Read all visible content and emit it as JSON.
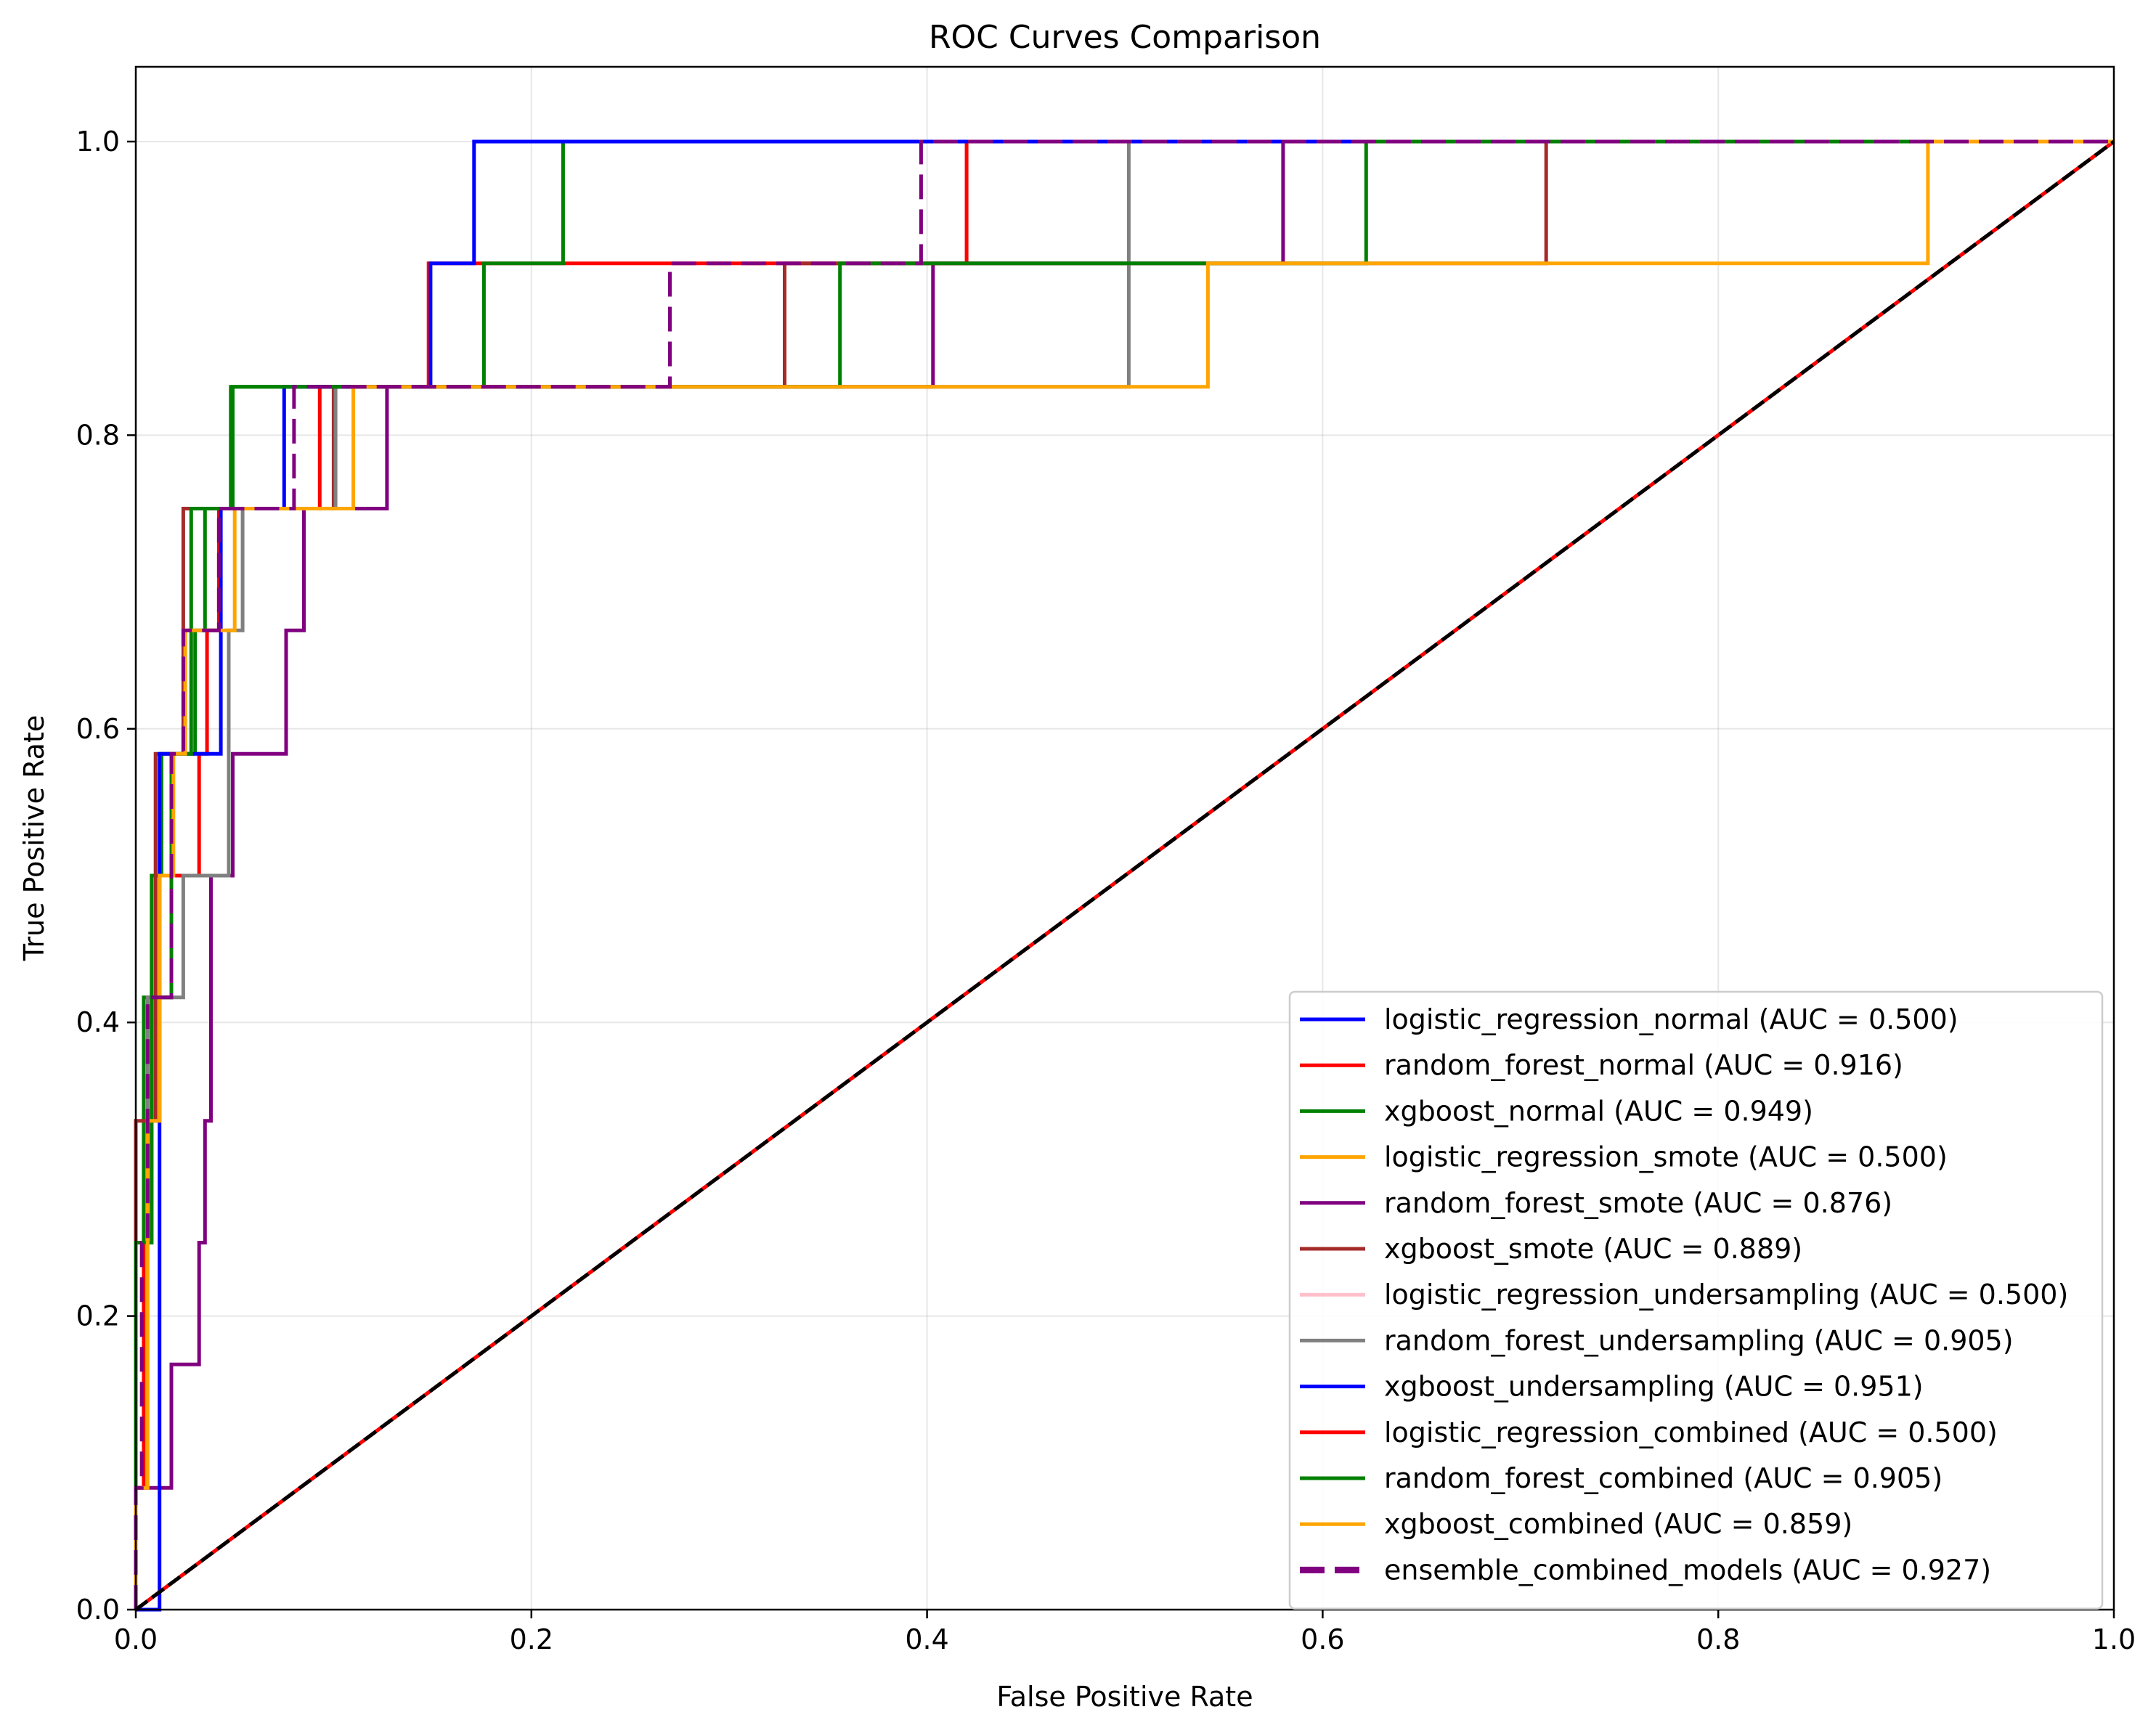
{
  "chart_data": {
    "type": "line",
    "title": "ROC Curves Comparison",
    "xlabel": "False Positive Rate",
    "ylabel": "True Positive Rate",
    "xlim": [
      0.0,
      1.0
    ],
    "ylim": [
      0.0,
      1.05
    ],
    "xticks": [
      "0.0",
      "0.2",
      "0.4",
      "0.6",
      "0.8",
      "1.0"
    ],
    "yticks": [
      "0.0",
      "0.2",
      "0.4",
      "0.6",
      "0.8",
      "1.0"
    ],
    "grid": true,
    "legend_position": "lower-right",
    "series": [
      {
        "name": "logistic_regression_normal (AUC = 0.500)",
        "color": "#0000ff",
        "style": "solid",
        "points": [
          [
            0,
            0
          ],
          [
            1,
            1
          ]
        ]
      },
      {
        "name": "random_forest_normal (AUC = 0.916)",
        "color": "#ff0000",
        "style": "solid",
        "points": [
          [
            0,
            0
          ],
          [
            0,
            0.083
          ],
          [
            0.004,
            0.083
          ],
          [
            0.004,
            0.25
          ],
          [
            0.008,
            0.25
          ],
          [
            0.008,
            0.417
          ],
          [
            0.018,
            0.417
          ],
          [
            0.018,
            0.5
          ],
          [
            0.032,
            0.5
          ],
          [
            0.032,
            0.583
          ],
          [
            0.036,
            0.583
          ],
          [
            0.036,
            0.667
          ],
          [
            0.042,
            0.667
          ],
          [
            0.042,
            0.75
          ],
          [
            0.093,
            0.75
          ],
          [
            0.093,
            0.833
          ],
          [
            0.148,
            0.833
          ],
          [
            0.148,
            0.917
          ],
          [
            0.42,
            0.917
          ],
          [
            0.42,
            1.0
          ],
          [
            1,
            1
          ]
        ]
      },
      {
        "name": "xgboost_normal (AUC = 0.949)",
        "color": "#008000",
        "style": "solid",
        "points": [
          [
            0,
            0
          ],
          [
            0,
            0.25
          ],
          [
            0.004,
            0.25
          ],
          [
            0.004,
            0.417
          ],
          [
            0.008,
            0.417
          ],
          [
            0.008,
            0.5
          ],
          [
            0.013,
            0.5
          ],
          [
            0.013,
            0.583
          ],
          [
            0.03,
            0.583
          ],
          [
            0.03,
            0.667
          ],
          [
            0.035,
            0.667
          ],
          [
            0.035,
            0.75
          ],
          [
            0.049,
            0.75
          ],
          [
            0.049,
            0.833
          ],
          [
            0.176,
            0.833
          ],
          [
            0.176,
            0.917
          ],
          [
            0.216,
            0.917
          ],
          [
            0.216,
            1.0
          ],
          [
            1,
            1
          ]
        ]
      },
      {
        "name": "logistic_regression_smote (AUC = 0.500)",
        "color": "#ffa500",
        "style": "solid",
        "points": [
          [
            0,
            0
          ],
          [
            1,
            1
          ]
        ]
      },
      {
        "name": "random_forest_smote (AUC = 0.876)",
        "color": "#800080",
        "style": "solid",
        "points": [
          [
            0,
            0
          ],
          [
            0,
            0.083
          ],
          [
            0.018,
            0.083
          ],
          [
            0.018,
            0.167
          ],
          [
            0.032,
            0.167
          ],
          [
            0.032,
            0.25
          ],
          [
            0.035,
            0.25
          ],
          [
            0.035,
            0.333
          ],
          [
            0.038,
            0.333
          ],
          [
            0.038,
            0.5
          ],
          [
            0.049,
            0.5
          ],
          [
            0.049,
            0.583
          ],
          [
            0.076,
            0.583
          ],
          [
            0.076,
            0.667
          ],
          [
            0.085,
            0.667
          ],
          [
            0.085,
            0.75
          ],
          [
            0.127,
            0.75
          ],
          [
            0.127,
            0.833
          ],
          [
            0.403,
            0.833
          ],
          [
            0.403,
            0.917
          ],
          [
            0.58,
            0.917
          ],
          [
            0.58,
            1.0
          ],
          [
            1,
            1
          ]
        ]
      },
      {
        "name": "xgboost_smote (AUC = 0.889)",
        "color": "#a52a2a",
        "style": "solid",
        "points": [
          [
            0,
            0
          ],
          [
            0,
            0.333
          ],
          [
            0.01,
            0.333
          ],
          [
            0.01,
            0.583
          ],
          [
            0.024,
            0.583
          ],
          [
            0.024,
            0.75
          ],
          [
            0.1,
            0.75
          ],
          [
            0.1,
            0.833
          ],
          [
            0.328,
            0.833
          ],
          [
            0.328,
            0.917
          ],
          [
            0.713,
            0.917
          ],
          [
            0.713,
            1.0
          ],
          [
            1,
            1
          ]
        ]
      },
      {
        "name": "logistic_regression_undersampling (AUC = 0.500)",
        "color": "#ffc0cb",
        "style": "solid",
        "points": [
          [
            0,
            0
          ],
          [
            1,
            1
          ]
        ]
      },
      {
        "name": "random_forest_undersampling (AUC = 0.905)",
        "color": "#808080",
        "style": "solid",
        "points": [
          [
            0,
            0
          ],
          [
            0,
            0.25
          ],
          [
            0.006,
            0.25
          ],
          [
            0.006,
            0.417
          ],
          [
            0.024,
            0.417
          ],
          [
            0.024,
            0.5
          ],
          [
            0.047,
            0.5
          ],
          [
            0.047,
            0.667
          ],
          [
            0.054,
            0.667
          ],
          [
            0.054,
            0.75
          ],
          [
            0.101,
            0.75
          ],
          [
            0.101,
            0.833
          ],
          [
            0.502,
            0.833
          ],
          [
            0.502,
            0.917
          ],
          [
            0.502,
            1.0
          ],
          [
            1,
            1
          ]
        ]
      },
      {
        "name": "xgboost_undersampling (AUC = 0.951)",
        "color": "#0000ff",
        "style": "solid",
        "points": [
          [
            0,
            0
          ],
          [
            0.012,
            0
          ],
          [
            0.012,
            0.583
          ],
          [
            0.043,
            0.583
          ],
          [
            0.043,
            0.75
          ],
          [
            0.075,
            0.75
          ],
          [
            0.075,
            0.833
          ],
          [
            0.149,
            0.833
          ],
          [
            0.149,
            0.917
          ],
          [
            0.171,
            0.917
          ],
          [
            0.171,
            1.0
          ],
          [
            1,
            1
          ]
        ]
      },
      {
        "name": "logistic_regression_combined (AUC = 0.500)",
        "color": "#ff0000",
        "style": "solid",
        "points": [
          [
            0,
            0
          ],
          [
            1,
            1
          ]
        ]
      },
      {
        "name": "random_forest_combined (AUC = 0.905)",
        "color": "#008000",
        "style": "solid",
        "points": [
          [
            0,
            0
          ],
          [
            0,
            0.25
          ],
          [
            0.008,
            0.25
          ],
          [
            0.008,
            0.417
          ],
          [
            0.018,
            0.417
          ],
          [
            0.018,
            0.583
          ],
          [
            0.028,
            0.583
          ],
          [
            0.028,
            0.75
          ],
          [
            0.048,
            0.75
          ],
          [
            0.048,
            0.833
          ],
          [
            0.356,
            0.833
          ],
          [
            0.356,
            0.917
          ],
          [
            0.622,
            0.917
          ],
          [
            0.622,
            1.0
          ],
          [
            1,
            1
          ]
        ]
      },
      {
        "name": "xgboost_combined (AUC = 0.859)",
        "color": "#ffa500",
        "style": "solid",
        "points": [
          [
            0,
            0
          ],
          [
            0,
            0.083
          ],
          [
            0.006,
            0.083
          ],
          [
            0.006,
            0.333
          ],
          [
            0.012,
            0.333
          ],
          [
            0.012,
            0.5
          ],
          [
            0.019,
            0.5
          ],
          [
            0.019,
            0.583
          ],
          [
            0.025,
            0.583
          ],
          [
            0.025,
            0.667
          ],
          [
            0.05,
            0.667
          ],
          [
            0.05,
            0.75
          ],
          [
            0.11,
            0.75
          ],
          [
            0.11,
            0.833
          ],
          [
            0.542,
            0.833
          ],
          [
            0.542,
            0.917
          ],
          [
            0.906,
            0.917
          ],
          [
            0.906,
            1.0
          ],
          [
            1,
            1
          ]
        ]
      },
      {
        "name": "ensemble_combined_models (AUC = 0.927)",
        "color": "#800080",
        "style": "dashed",
        "points": [
          [
            0,
            0
          ],
          [
            0,
            0.083
          ],
          [
            0.003,
            0.083
          ],
          [
            0.003,
            0.25
          ],
          [
            0.006,
            0.25
          ],
          [
            0.006,
            0.417
          ],
          [
            0.018,
            0.417
          ],
          [
            0.018,
            0.583
          ],
          [
            0.024,
            0.583
          ],
          [
            0.024,
            0.667
          ],
          [
            0.042,
            0.667
          ],
          [
            0.042,
            0.75
          ],
          [
            0.08,
            0.75
          ],
          [
            0.08,
            0.833
          ],
          [
            0.27,
            0.833
          ],
          [
            0.27,
            0.917
          ],
          [
            0.397,
            0.917
          ],
          [
            0.397,
            1.0
          ],
          [
            1,
            1
          ]
        ]
      }
    ],
    "reference_line": {
      "color": "#000000",
      "style": "dashed",
      "points": [
        [
          0,
          0
        ],
        [
          1,
          1
        ]
      ]
    }
  }
}
